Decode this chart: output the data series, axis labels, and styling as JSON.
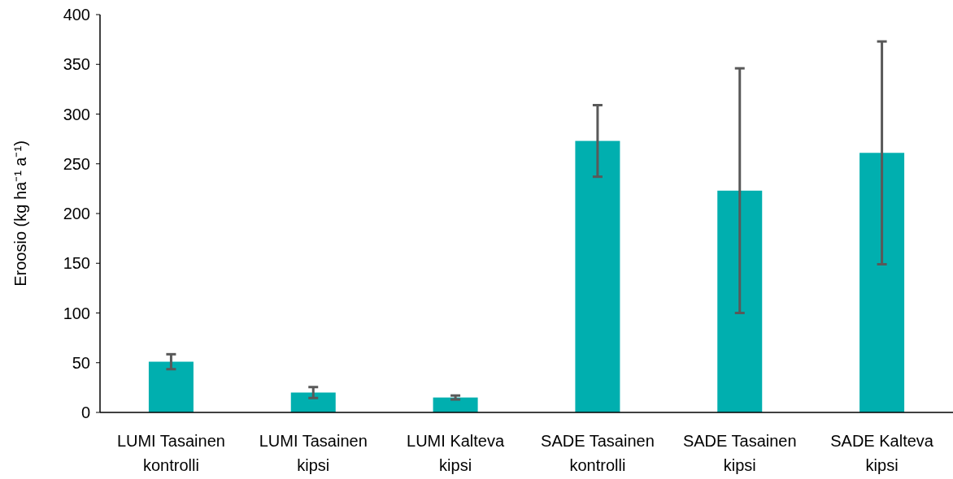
{
  "chart_data": {
    "type": "bar",
    "ylabel": "Eroosio (kg ha⁻¹ a⁻¹)",
    "categories": [
      "LUMI Tasainen kontrolli",
      "LUMI Tasainen kipsi",
      "LUMI Kalteva kipsi",
      "SADE Tasainen kontrolli",
      "SADE Tasainen kipsi",
      "SADE Kalteva kipsi"
    ],
    "values": [
      51,
      20,
      15,
      273,
      223,
      261
    ],
    "errors": [
      7.5,
      5.5,
      2,
      36,
      123,
      112
    ],
    "color": "#00afaf",
    "ylim": [
      0,
      400
    ],
    "yticks": [
      0,
      50,
      100,
      150,
      200,
      250,
      300,
      350,
      400
    ],
    "grid": false
  }
}
